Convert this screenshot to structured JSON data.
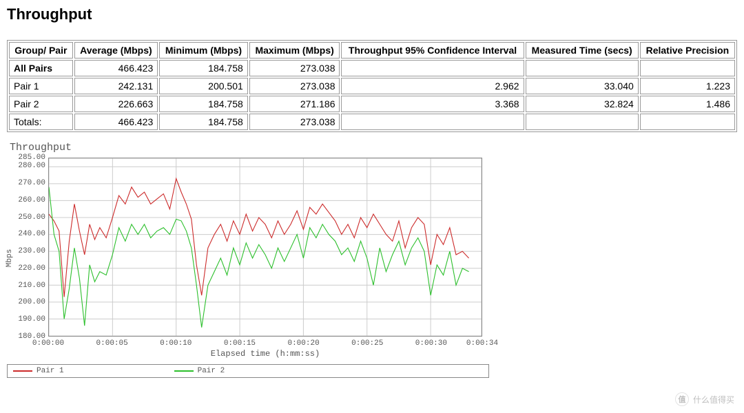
{
  "title": "Throughput",
  "table": {
    "columns": [
      "Group/ Pair",
      "Average (Mbps)",
      "Minimum (Mbps)",
      "Maximum (Mbps)",
      "Throughput 95% Confidence Interval",
      "Measured Time (secs)",
      "Relative Precision"
    ],
    "rows": [
      {
        "label": "All Pairs",
        "class": "all-pairs",
        "cells": [
          "466.423",
          "184.758",
          "273.038",
          "",
          "",
          ""
        ]
      },
      {
        "label": "Pair 1",
        "class": "",
        "cells": [
          "242.131",
          "200.501",
          "273.038",
          "2.962",
          "33.040",
          "1.223"
        ]
      },
      {
        "label": "Pair 2",
        "class": "",
        "cells": [
          "226.663",
          "184.758",
          "271.186",
          "3.368",
          "32.824",
          "1.486"
        ]
      },
      {
        "label": "Totals:",
        "class": "",
        "cells": [
          "466.423",
          "184.758",
          "273.038",
          "",
          "",
          ""
        ]
      }
    ]
  },
  "chart": {
    "title": "Throughput",
    "type": "line",
    "xlabel": "Elapsed time (h:mm:ss)",
    "ylabel": "Mbps",
    "background_color": "#ffffff",
    "grid_color": "#cccccc",
    "axis_color": "#888888",
    "tick_font_size": 11,
    "font_family": "Courier New",
    "line_width": 1.1,
    "xlim": [
      0,
      34
    ],
    "ylim": [
      180,
      285
    ],
    "yticks": [
      180,
      190,
      200,
      210,
      220,
      230,
      240,
      250,
      260,
      270,
      280,
      285
    ],
    "ytick_labels": [
      "180.00",
      "190.00",
      "200.00",
      "210.00",
      "220.00",
      "230.00",
      "240.00",
      "250.00",
      "260.00",
      "270.00",
      "280.00",
      "285.00"
    ],
    "xticks": [
      0,
      5,
      10,
      15,
      20,
      25,
      30,
      34
    ],
    "xtick_labels": [
      "0:00:00",
      "0:00:05",
      "0:00:10",
      "0:00:15",
      "0:00:20",
      "0:00:25",
      "0:00:30",
      "0:00:34"
    ],
    "series": [
      {
        "name": "Pair 1",
        "color": "#cc2a2a",
        "x": [
          0,
          0.4,
          0.8,
          1.2,
          1.6,
          2,
          2.4,
          2.8,
          3.2,
          3.6,
          4,
          4.5,
          5,
          5.5,
          6,
          6.5,
          7,
          7.5,
          8,
          8.5,
          9,
          9.5,
          10,
          10.4,
          10.8,
          11.2,
          11.6,
          12,
          12.5,
          13,
          13.5,
          14,
          14.5,
          15,
          15.5,
          16,
          16.5,
          17,
          17.5,
          18,
          18.5,
          19,
          19.5,
          20,
          20.5,
          21,
          21.5,
          22,
          22.5,
          23,
          23.5,
          24,
          24.5,
          25,
          25.5,
          26,
          26.5,
          27,
          27.5,
          28,
          28.5,
          29,
          29.5,
          30,
          30.5,
          31,
          31.5,
          32,
          32.5,
          33
        ],
        "y": [
          252,
          248,
          242,
          203,
          236,
          258,
          242,
          228,
          246,
          237,
          244,
          238,
          250,
          263,
          258,
          268,
          262,
          265,
          258,
          261,
          264,
          255,
          273,
          265,
          258,
          249,
          222,
          204,
          232,
          240,
          246,
          236,
          248,
          240,
          252,
          242,
          250,
          246,
          238,
          248,
          240,
          246,
          254,
          243,
          256,
          252,
          258,
          253,
          248,
          240,
          246,
          238,
          250,
          244,
          252,
          246,
          240,
          236,
          248,
          232,
          244,
          250,
          246,
          222,
          240,
          234,
          244,
          228,
          230,
          226
        ]
      },
      {
        "name": "Pair 2",
        "color": "#2bbf2b",
        "x": [
          0,
          0.4,
          0.8,
          1.2,
          1.6,
          2,
          2.4,
          2.8,
          3.2,
          3.6,
          4,
          4.5,
          5,
          5.5,
          6,
          6.5,
          7,
          7.5,
          8,
          8.5,
          9,
          9.5,
          10,
          10.4,
          10.8,
          11.2,
          11.6,
          12,
          12.5,
          13,
          13.5,
          14,
          14.5,
          15,
          15.5,
          16,
          16.5,
          17,
          17.5,
          18,
          18.5,
          19,
          19.5,
          20,
          20.5,
          21,
          21.5,
          22,
          22.5,
          23,
          23.5,
          24,
          24.5,
          25,
          25.5,
          26,
          26.5,
          27,
          27.5,
          28,
          28.5,
          29,
          29.5,
          30,
          30.5,
          31,
          31.5,
          32,
          32.5,
          33
        ],
        "y": [
          268,
          240,
          230,
          190,
          208,
          232,
          214,
          186,
          222,
          212,
          218,
          216,
          228,
          244,
          236,
          246,
          240,
          246,
          238,
          242,
          244,
          240,
          249,
          248,
          242,
          232,
          210,
          185,
          210,
          218,
          226,
          216,
          232,
          222,
          235,
          226,
          234,
          228,
          220,
          232,
          224,
          232,
          240,
          226,
          244,
          238,
          246,
          240,
          236,
          228,
          232,
          224,
          236,
          226,
          210,
          232,
          218,
          228,
          236,
          222,
          232,
          238,
          230,
          204,
          222,
          216,
          230,
          210,
          220,
          218
        ]
      }
    ],
    "legend": {
      "items": [
        {
          "label": "Pair 1",
          "color": "#cc2a2a"
        },
        {
          "label": "Pair 2",
          "color": "#2bbf2b"
        }
      ]
    }
  },
  "watermark": {
    "text": "什么值得买",
    "icon": "值"
  }
}
